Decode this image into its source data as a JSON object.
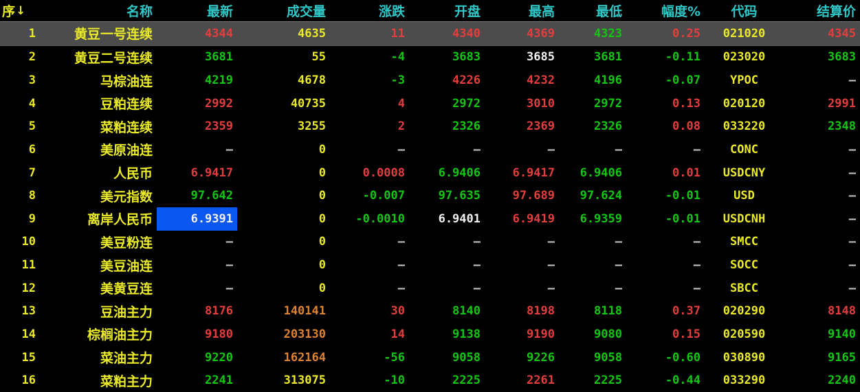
{
  "palette": {
    "red": "#e43d3d",
    "green": "#12c712",
    "yellow": "#ebeb28",
    "orange": "#df8330",
    "white": "#f2f2f2",
    "gray": "#c9c9c9",
    "cyan": "#2fc7c7",
    "selected_row_bg": "#4c4c4c",
    "selected_cell_bg": "#0b57f2",
    "background": "#000000"
  },
  "table": {
    "columns": [
      {
        "id": "seq",
        "label": "序",
        "sort_icon": "↓",
        "header_color": "yellow"
      },
      {
        "id": "name",
        "label": "名称",
        "header_color": "cyan"
      },
      {
        "id": "last",
        "label": "最新",
        "header_color": "cyan"
      },
      {
        "id": "vol",
        "label": "成交量",
        "header_color": "cyan"
      },
      {
        "id": "chg",
        "label": "涨跌",
        "header_color": "cyan"
      },
      {
        "id": "open",
        "label": "开盘",
        "header_color": "cyan"
      },
      {
        "id": "high",
        "label": "最高",
        "header_color": "cyan"
      },
      {
        "id": "low",
        "label": "最低",
        "header_color": "cyan"
      },
      {
        "id": "amp",
        "label": "幅度%",
        "header_color": "cyan"
      },
      {
        "id": "code",
        "label": "代码",
        "header_color": "cyan"
      },
      {
        "id": "settle",
        "label": "结算价",
        "header_color": "cyan"
      }
    ],
    "rows": [
      {
        "selected": true,
        "cells": {
          "seq": {
            "v": "1",
            "c": "yellow"
          },
          "name": {
            "v": "黄豆一号连续",
            "c": "yellow"
          },
          "last": {
            "v": "4344",
            "c": "red"
          },
          "vol": {
            "v": "4635",
            "c": "yellow"
          },
          "chg": {
            "v": "11",
            "c": "red"
          },
          "open": {
            "v": "4340",
            "c": "red"
          },
          "high": {
            "v": "4369",
            "c": "red"
          },
          "low": {
            "v": "4323",
            "c": "green"
          },
          "amp": {
            "v": "0.25",
            "c": "red"
          },
          "code": {
            "v": "021020",
            "c": "yellow"
          },
          "settle": {
            "v": "4345",
            "c": "red"
          }
        }
      },
      {
        "cells": {
          "seq": {
            "v": "2",
            "c": "yellow"
          },
          "name": {
            "v": "黄豆二号连续",
            "c": "yellow"
          },
          "last": {
            "v": "3681",
            "c": "green"
          },
          "vol": {
            "v": "55",
            "c": "yellow"
          },
          "chg": {
            "v": "-4",
            "c": "green"
          },
          "open": {
            "v": "3683",
            "c": "green"
          },
          "high": {
            "v": "3685",
            "c": "white"
          },
          "low": {
            "v": "3681",
            "c": "green"
          },
          "amp": {
            "v": "-0.11",
            "c": "green"
          },
          "code": {
            "v": "023020",
            "c": "yellow"
          },
          "settle": {
            "v": "3683",
            "c": "green"
          }
        }
      },
      {
        "cells": {
          "seq": {
            "v": "3",
            "c": "yellow"
          },
          "name": {
            "v": "马棕油连",
            "c": "yellow"
          },
          "last": {
            "v": "4219",
            "c": "green"
          },
          "vol": {
            "v": "4678",
            "c": "yellow"
          },
          "chg": {
            "v": "-3",
            "c": "green"
          },
          "open": {
            "v": "4226",
            "c": "red"
          },
          "high": {
            "v": "4232",
            "c": "red"
          },
          "low": {
            "v": "4196",
            "c": "green"
          },
          "amp": {
            "v": "-0.07",
            "c": "green"
          },
          "code": {
            "v": "YPOC",
            "c": "yellow"
          },
          "settle": {
            "v": "—",
            "c": "gray"
          }
        }
      },
      {
        "cells": {
          "seq": {
            "v": "4",
            "c": "yellow"
          },
          "name": {
            "v": "豆粕连续",
            "c": "yellow"
          },
          "last": {
            "v": "2992",
            "c": "red"
          },
          "vol": {
            "v": "40735",
            "c": "yellow"
          },
          "chg": {
            "v": "4",
            "c": "red"
          },
          "open": {
            "v": "2972",
            "c": "green"
          },
          "high": {
            "v": "3010",
            "c": "red"
          },
          "low": {
            "v": "2972",
            "c": "green"
          },
          "amp": {
            "v": "0.13",
            "c": "red"
          },
          "code": {
            "v": "020120",
            "c": "yellow"
          },
          "settle": {
            "v": "2991",
            "c": "red"
          }
        }
      },
      {
        "cells": {
          "seq": {
            "v": "5",
            "c": "yellow"
          },
          "name": {
            "v": "菜粕连续",
            "c": "yellow"
          },
          "last": {
            "v": "2359",
            "c": "red"
          },
          "vol": {
            "v": "3255",
            "c": "yellow"
          },
          "chg": {
            "v": "2",
            "c": "red"
          },
          "open": {
            "v": "2326",
            "c": "green"
          },
          "high": {
            "v": "2369",
            "c": "red"
          },
          "low": {
            "v": "2326",
            "c": "green"
          },
          "amp": {
            "v": "0.08",
            "c": "red"
          },
          "code": {
            "v": "033220",
            "c": "yellow"
          },
          "settle": {
            "v": "2348",
            "c": "green"
          }
        }
      },
      {
        "cells": {
          "seq": {
            "v": "6",
            "c": "yellow"
          },
          "name": {
            "v": "美原油连",
            "c": "yellow"
          },
          "last": {
            "v": "—",
            "c": "gray"
          },
          "vol": {
            "v": "0",
            "c": "yellow"
          },
          "chg": {
            "v": "—",
            "c": "gray"
          },
          "open": {
            "v": "—",
            "c": "gray"
          },
          "high": {
            "v": "—",
            "c": "gray"
          },
          "low": {
            "v": "—",
            "c": "gray"
          },
          "amp": {
            "v": "—",
            "c": "gray"
          },
          "code": {
            "v": "CONC",
            "c": "yellow"
          },
          "settle": {
            "v": "—",
            "c": "gray"
          }
        }
      },
      {
        "cells": {
          "seq": {
            "v": "7",
            "c": "yellow"
          },
          "name": {
            "v": "人民币",
            "c": "yellow"
          },
          "last": {
            "v": "6.9417",
            "c": "red"
          },
          "vol": {
            "v": "0",
            "c": "yellow"
          },
          "chg": {
            "v": "0.0008",
            "c": "red"
          },
          "open": {
            "v": "6.9406",
            "c": "green"
          },
          "high": {
            "v": "6.9417",
            "c": "red"
          },
          "low": {
            "v": "6.9406",
            "c": "green"
          },
          "amp": {
            "v": "0.01",
            "c": "red"
          },
          "code": {
            "v": "USDCNY",
            "c": "yellow"
          },
          "settle": {
            "v": "—",
            "c": "gray"
          }
        }
      },
      {
        "cells": {
          "seq": {
            "v": "8",
            "c": "yellow"
          },
          "name": {
            "v": "美元指数",
            "c": "yellow"
          },
          "last": {
            "v": "97.642",
            "c": "green"
          },
          "vol": {
            "v": "0",
            "c": "yellow"
          },
          "chg": {
            "v": "-0.007",
            "c": "green"
          },
          "open": {
            "v": "97.635",
            "c": "green"
          },
          "high": {
            "v": "97.689",
            "c": "red"
          },
          "low": {
            "v": "97.624",
            "c": "green"
          },
          "amp": {
            "v": "-0.01",
            "c": "green"
          },
          "code": {
            "v": "USD",
            "c": "yellow"
          },
          "settle": {
            "v": "—",
            "c": "gray"
          }
        }
      },
      {
        "cells": {
          "seq": {
            "v": "9",
            "c": "yellow"
          },
          "name": {
            "v": "离岸人民币",
            "c": "yellow"
          },
          "last": {
            "v": "6.9391",
            "c": "white",
            "selected": true
          },
          "vol": {
            "v": "0",
            "c": "yellow"
          },
          "chg": {
            "v": "-0.0010",
            "c": "green"
          },
          "open": {
            "v": "6.9401",
            "c": "white"
          },
          "high": {
            "v": "6.9419",
            "c": "red"
          },
          "low": {
            "v": "6.9359",
            "c": "green"
          },
          "amp": {
            "v": "-0.01",
            "c": "green"
          },
          "code": {
            "v": "USDCNH",
            "c": "yellow"
          },
          "settle": {
            "v": "—",
            "c": "gray"
          }
        }
      },
      {
        "cells": {
          "seq": {
            "v": "10",
            "c": "yellow"
          },
          "name": {
            "v": "美豆粉连",
            "c": "yellow"
          },
          "last": {
            "v": "—",
            "c": "gray"
          },
          "vol": {
            "v": "0",
            "c": "yellow"
          },
          "chg": {
            "v": "—",
            "c": "gray"
          },
          "open": {
            "v": "—",
            "c": "gray"
          },
          "high": {
            "v": "—",
            "c": "gray"
          },
          "low": {
            "v": "—",
            "c": "gray"
          },
          "amp": {
            "v": "—",
            "c": "gray"
          },
          "code": {
            "v": "SMCC",
            "c": "yellow"
          },
          "settle": {
            "v": "—",
            "c": "gray"
          }
        }
      },
      {
        "cells": {
          "seq": {
            "v": "11",
            "c": "yellow"
          },
          "name": {
            "v": "美豆油连",
            "c": "yellow"
          },
          "last": {
            "v": "—",
            "c": "gray"
          },
          "vol": {
            "v": "0",
            "c": "yellow"
          },
          "chg": {
            "v": "—",
            "c": "gray"
          },
          "open": {
            "v": "—",
            "c": "gray"
          },
          "high": {
            "v": "—",
            "c": "gray"
          },
          "low": {
            "v": "—",
            "c": "gray"
          },
          "amp": {
            "v": "—",
            "c": "gray"
          },
          "code": {
            "v": "SOCC",
            "c": "yellow"
          },
          "settle": {
            "v": "—",
            "c": "gray"
          }
        }
      },
      {
        "cells": {
          "seq": {
            "v": "12",
            "c": "yellow"
          },
          "name": {
            "v": "美黄豆连",
            "c": "yellow"
          },
          "last": {
            "v": "—",
            "c": "gray"
          },
          "vol": {
            "v": "0",
            "c": "yellow"
          },
          "chg": {
            "v": "—",
            "c": "gray"
          },
          "open": {
            "v": "—",
            "c": "gray"
          },
          "high": {
            "v": "—",
            "c": "gray"
          },
          "low": {
            "v": "—",
            "c": "gray"
          },
          "amp": {
            "v": "—",
            "c": "gray"
          },
          "code": {
            "v": "SBCC",
            "c": "yellow"
          },
          "settle": {
            "v": "—",
            "c": "gray"
          }
        }
      },
      {
        "cells": {
          "seq": {
            "v": "13",
            "c": "yellow"
          },
          "name": {
            "v": "豆油主力",
            "c": "yellow"
          },
          "last": {
            "v": "8176",
            "c": "red"
          },
          "vol": {
            "v": "140141",
            "c": "orange"
          },
          "chg": {
            "v": "30",
            "c": "red"
          },
          "open": {
            "v": "8140",
            "c": "green"
          },
          "high": {
            "v": "8198",
            "c": "red"
          },
          "low": {
            "v": "8118",
            "c": "green"
          },
          "amp": {
            "v": "0.37",
            "c": "red"
          },
          "code": {
            "v": "020290",
            "c": "yellow"
          },
          "settle": {
            "v": "8148",
            "c": "red"
          }
        }
      },
      {
        "cells": {
          "seq": {
            "v": "14",
            "c": "yellow"
          },
          "name": {
            "v": "棕榈油主力",
            "c": "yellow"
          },
          "last": {
            "v": "9180",
            "c": "red"
          },
          "vol": {
            "v": "203130",
            "c": "orange"
          },
          "chg": {
            "v": "14",
            "c": "red"
          },
          "open": {
            "v": "9138",
            "c": "green"
          },
          "high": {
            "v": "9190",
            "c": "red"
          },
          "low": {
            "v": "9080",
            "c": "green"
          },
          "amp": {
            "v": "0.15",
            "c": "red"
          },
          "code": {
            "v": "020590",
            "c": "yellow"
          },
          "settle": {
            "v": "9140",
            "c": "green"
          }
        }
      },
      {
        "cells": {
          "seq": {
            "v": "15",
            "c": "yellow"
          },
          "name": {
            "v": "菜油主力",
            "c": "yellow"
          },
          "last": {
            "v": "9220",
            "c": "green"
          },
          "vol": {
            "v": "162164",
            "c": "orange"
          },
          "chg": {
            "v": "-56",
            "c": "green"
          },
          "open": {
            "v": "9058",
            "c": "green"
          },
          "high": {
            "v": "9226",
            "c": "green"
          },
          "low": {
            "v": "9058",
            "c": "green"
          },
          "amp": {
            "v": "-0.60",
            "c": "green"
          },
          "code": {
            "v": "030890",
            "c": "yellow"
          },
          "settle": {
            "v": "9165",
            "c": "green"
          }
        }
      },
      {
        "cells": {
          "seq": {
            "v": "16",
            "c": "yellow"
          },
          "name": {
            "v": "菜粕主力",
            "c": "yellow"
          },
          "last": {
            "v": "2241",
            "c": "green"
          },
          "vol": {
            "v": "313075",
            "c": "yellow"
          },
          "chg": {
            "v": "-10",
            "c": "green"
          },
          "open": {
            "v": "2225",
            "c": "green"
          },
          "high": {
            "v": "2261",
            "c": "red"
          },
          "low": {
            "v": "2225",
            "c": "green"
          },
          "amp": {
            "v": "-0.44",
            "c": "green"
          },
          "code": {
            "v": "033290",
            "c": "yellow"
          },
          "settle": {
            "v": "2240",
            "c": "green"
          }
        }
      }
    ]
  }
}
